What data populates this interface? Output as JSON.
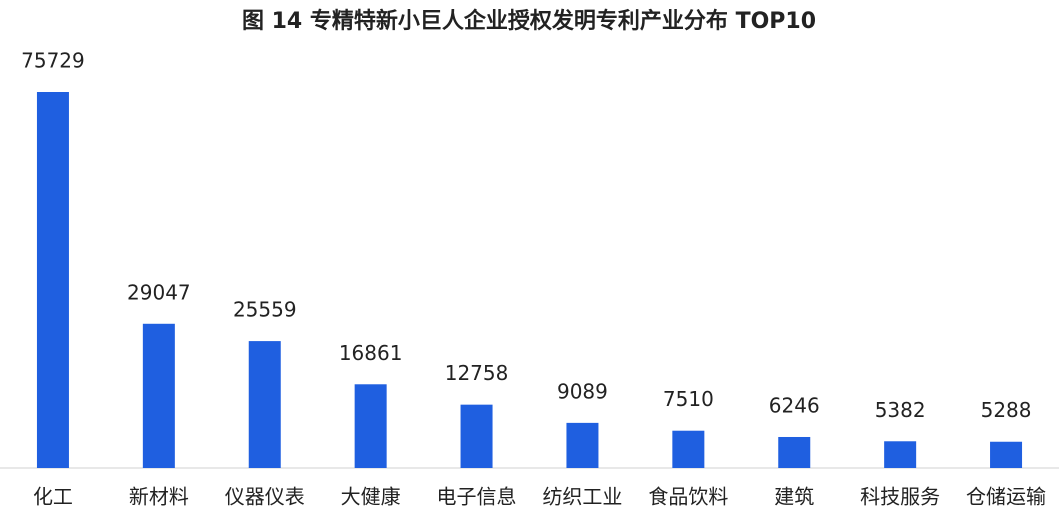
{
  "chart_data": {
    "type": "bar",
    "title": "图 14 专精特新小巨人企业授权发明专利产业分布 TOP10",
    "categories": [
      "化工",
      "新材料",
      "仪器仪表",
      "大健康",
      "电子信息",
      "纺织工业",
      "食品饮料",
      "建筑",
      "科技服务",
      "仓储运输"
    ],
    "values": [
      75729,
      29047,
      25559,
      16861,
      12758,
      9089,
      7510,
      6246,
      5382,
      5288
    ],
    "color": "#1f5fe0"
  }
}
